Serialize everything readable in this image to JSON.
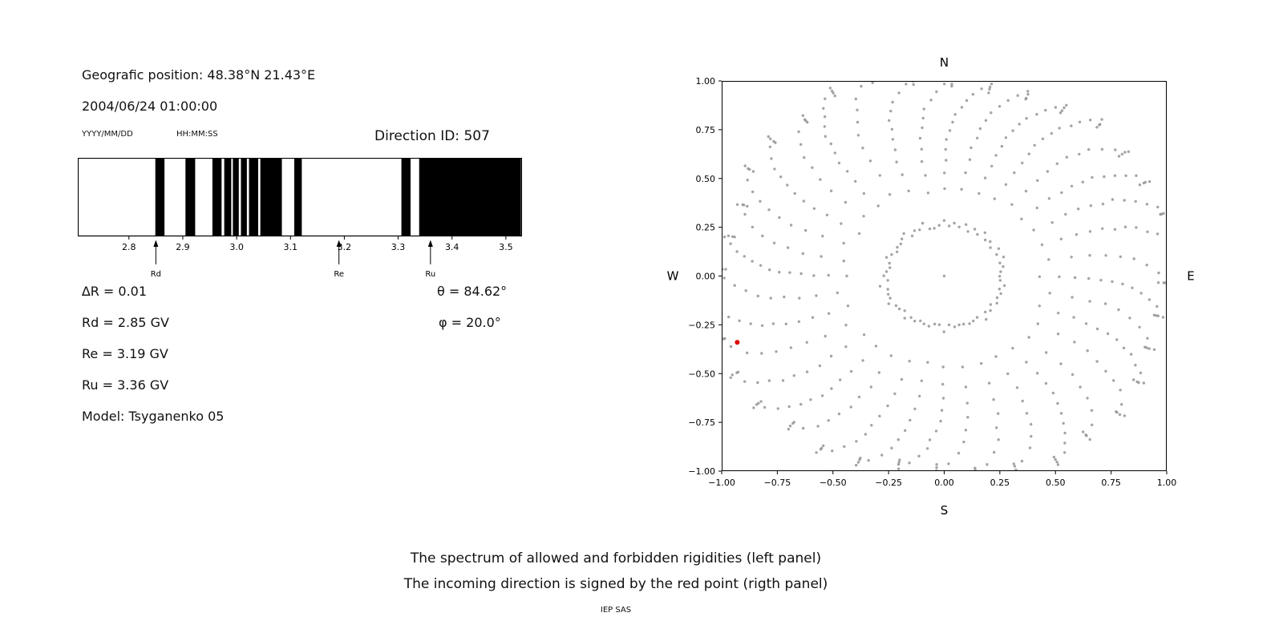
{
  "header": {
    "position_label": "Geografic position: 48.38°N 21.43°E",
    "datetime": "2004/06/24 01:00:00",
    "date_format": "YYYY/MM/DD",
    "time_format": "HH:MM:SS",
    "direction_id": "Direction ID: 507"
  },
  "info": {
    "delta_r": "∆R = 0.01",
    "rd": "Rd = 2.85 GV",
    "re": "Re = 3.19 GV",
    "ru": "Ru = 3.36 GV",
    "model": "Model: Tsyganenko 05",
    "theta": "θ = 84.62°",
    "phi": "φ = 20.0°"
  },
  "caption": {
    "line1": "The spectrum of allowed and forbidden rigidities (left panel)",
    "line2": "The incoming direction is signed by the red point (rigth panel)",
    "credit": "IEP SAS"
  },
  "chart_data": [
    {
      "type": "bar",
      "description": "Penumbra barcode: black bands are forbidden rigidity intervals (GV)",
      "x_range": [
        2.705,
        3.53
      ],
      "x_ticks": [
        2.8,
        2.9,
        3.0,
        3.1,
        3.2,
        3.3,
        3.4,
        3.5
      ],
      "forbidden_bands": [
        [
          2.849,
          2.866
        ],
        [
          2.905,
          2.923
        ],
        [
          2.955,
          2.972
        ],
        [
          2.977,
          2.99
        ],
        [
          2.993,
          3.004
        ],
        [
          3.008,
          3.019
        ],
        [
          3.023,
          3.04
        ],
        [
          3.044,
          3.084
        ],
        [
          3.107,
          3.121
        ],
        [
          3.306,
          3.323
        ],
        [
          3.339,
          3.528
        ]
      ],
      "markers": [
        {
          "label": "Rd",
          "value": 2.85
        },
        {
          "label": "Re",
          "value": 3.19
        },
        {
          "label": "Ru",
          "value": 3.36
        }
      ],
      "band_color": "#000000"
    },
    {
      "type": "scatter",
      "description": "Asymptotic directions: radial spokes of gray dots, incoming direction marked by red point",
      "xlim": [
        -1,
        1
      ],
      "ylim": [
        -1,
        1
      ],
      "x_ticks": [
        -1.0,
        -0.75,
        -0.5,
        -0.25,
        0.0,
        0.25,
        0.5,
        0.75,
        1.0
      ],
      "y_ticks": [
        -1.0,
        -0.75,
        -0.5,
        -0.25,
        0.0,
        0.25,
        0.5,
        0.75,
        1.0
      ],
      "compass": {
        "n": "N",
        "e": "E",
        "s": "S",
        "w": "W"
      },
      "dot_color": "#949494",
      "red_point": {
        "x": -0.93,
        "y": -0.34,
        "color": "#dd0000"
      },
      "spokes": {
        "count": 36,
        "start_angle_deg": 0,
        "step_deg": 10,
        "r_inner": 0.27,
        "r_outer": 1.0,
        "dots_per_spoke": 12,
        "outer_cluster_exponent": 0.58,
        "curve_deg": -12
      },
      "inner_ring": {
        "radius": 0.26,
        "count": 36
      },
      "center_dot": true
    }
  ]
}
